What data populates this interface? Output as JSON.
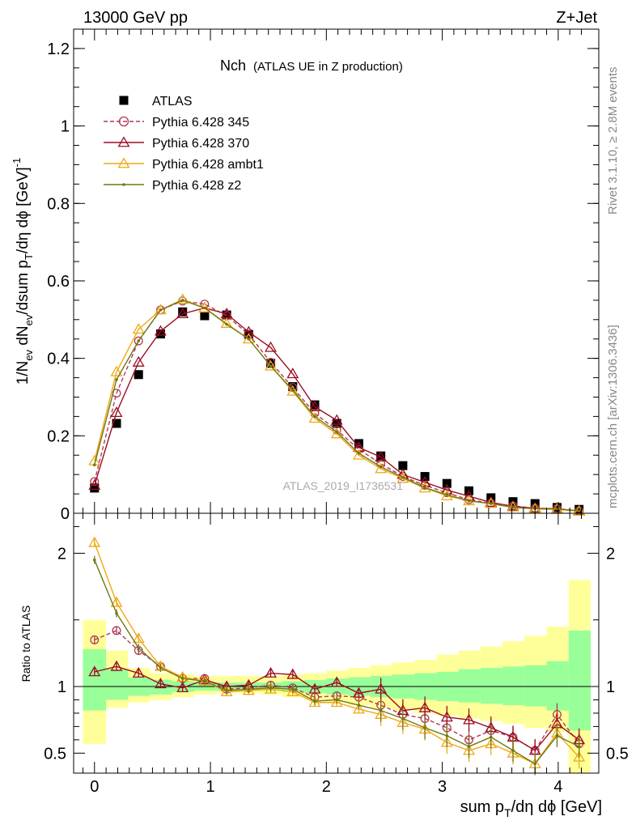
{
  "header": {
    "left": "13000 GeV pp",
    "right": "Z+Jet"
  },
  "side_labels": {
    "rivet": "Rivet 3.1.10, ≥ 2.8M events",
    "mcplots": "mcplots.cern.ch [arXiv:1306.3436]"
  },
  "chart_data": [
    {
      "type": "scatter",
      "title_main": "Nch",
      "title_sub": "(ATLAS UE in Z production)",
      "ylabel": "1/N_ev dN_ev/dsum p_T/dη dϕ [GeV]^-1",
      "analysis_label": "ATLAS_2019_I1736531",
      "ylim": [
        0,
        1.25
      ],
      "xlim": [
        -0.18,
        4.35
      ],
      "yticks": [
        "0",
        "0.2",
        "0.4",
        "0.6",
        "0.8",
        "1",
        "1.2"
      ],
      "legend_position": "top-left",
      "x": [
        0.0,
        0.19,
        0.38,
        0.57,
        0.76,
        0.95,
        1.14,
        1.33,
        1.52,
        1.71,
        1.9,
        2.09,
        2.28,
        2.47,
        2.66,
        2.85,
        3.04,
        3.23,
        3.42,
        3.61,
        3.8,
        3.99,
        4.18
      ],
      "series": [
        {
          "name": "ATLAS",
          "color": "#000000",
          "marker": "square",
          "values": [
            0.065,
            0.232,
            0.358,
            0.463,
            0.52,
            0.51,
            0.512,
            0.462,
            0.387,
            0.327,
            0.28,
            0.232,
            0.18,
            0.148,
            0.123,
            0.095,
            0.077,
            0.058,
            0.04,
            0.03,
            0.025,
            0.015,
            0.01
          ]
        },
        {
          "name": "Pythia 6.428 345",
          "color": "#b03a52",
          "marker": "circle-open",
          "dashed": true,
          "values": [
            0.082,
            0.31,
            0.445,
            0.525,
            0.548,
            0.54,
            0.51,
            0.462,
            0.39,
            0.325,
            0.258,
            0.215,
            0.165,
            0.128,
            0.095,
            0.072,
            0.053,
            0.035,
            0.026,
            0.019,
            0.013,
            0.012,
            0.006
          ]
        },
        {
          "name": "Pythia 6.428 370",
          "color": "#9b0d22",
          "marker": "triangle-open",
          "values": [
            0.072,
            0.26,
            0.39,
            0.47,
            0.515,
            0.53,
            0.515,
            0.468,
            0.428,
            0.36,
            0.275,
            0.24,
            0.17,
            0.145,
            0.1,
            0.08,
            0.06,
            0.044,
            0.028,
            0.018,
            0.013,
            0.011,
            0.006
          ]
        },
        {
          "name": "Pythia 6.428 ambt1",
          "color": "#f0a814",
          "marker": "triangle-open",
          "values": [
            0.135,
            0.365,
            0.475,
            0.525,
            0.552,
            0.53,
            0.49,
            0.45,
            0.38,
            0.315,
            0.245,
            0.205,
            0.15,
            0.115,
            0.09,
            0.065,
            0.045,
            0.032,
            0.025,
            0.016,
            0.011,
            0.01,
            0.005
          ]
        },
        {
          "name": "Pythia 6.428 z2",
          "color": "#6e7a14",
          "marker": "dot",
          "values": [
            0.125,
            0.345,
            0.445,
            0.525,
            0.55,
            0.53,
            0.488,
            0.45,
            0.38,
            0.318,
            0.25,
            0.21,
            0.155,
            0.12,
            0.093,
            0.066,
            0.048,
            0.032,
            0.025,
            0.015,
            0.012,
            0.011,
            0.006
          ]
        }
      ]
    },
    {
      "type": "scatter",
      "ylabel": "Ratio to ATLAS",
      "xlabel": "sum p_T/dη dϕ [GeV]",
      "ylim": [
        0.35,
        2.3
      ],
      "xlim": [
        -0.18,
        4.35
      ],
      "yticks": [
        "0.5",
        "1",
        "2"
      ],
      "xticks": [
        "0",
        "1",
        "2",
        "3",
        "4"
      ],
      "x": [
        0.0,
        0.19,
        0.38,
        0.57,
        0.76,
        0.95,
        1.14,
        1.33,
        1.52,
        1.71,
        1.9,
        2.09,
        2.28,
        2.47,
        2.66,
        2.85,
        3.04,
        3.23,
        3.42,
        3.61,
        3.8,
        3.99,
        4.18
      ],
      "bands": {
        "edges": [
          -0.1,
          0.1,
          0.29,
          0.48,
          0.67,
          0.86,
          1.05,
          1.24,
          1.43,
          1.62,
          1.81,
          2.0,
          2.19,
          2.38,
          2.57,
          2.76,
          2.95,
          3.14,
          3.33,
          3.52,
          3.71,
          3.9,
          4.09,
          4.28
        ],
        "yellow_lo": [
          0.57,
          0.84,
          0.88,
          0.9,
          0.92,
          0.94,
          0.95,
          0.95,
          0.94,
          0.92,
          0.9,
          0.88,
          0.86,
          0.84,
          0.82,
          0.8,
          0.78,
          0.76,
          0.74,
          0.72,
          0.69,
          0.66,
          0.35
        ],
        "yellow_hi": [
          1.5,
          1.27,
          1.14,
          1.1,
          1.09,
          1.08,
          1.08,
          1.08,
          1.08,
          1.09,
          1.1,
          1.12,
          1.14,
          1.16,
          1.18,
          1.2,
          1.24,
          1.27,
          1.3,
          1.34,
          1.38,
          1.45,
          1.8
        ],
        "green_lo": [
          0.82,
          0.9,
          0.93,
          0.94,
          0.96,
          0.97,
          0.97,
          0.97,
          0.97,
          0.96,
          0.95,
          0.94,
          0.93,
          0.92,
          0.91,
          0.9,
          0.89,
          0.88,
          0.87,
          0.86,
          0.85,
          0.82,
          0.67
        ],
        "green_hi": [
          1.28,
          1.13,
          1.07,
          1.05,
          1.04,
          1.03,
          1.03,
          1.03,
          1.03,
          1.04,
          1.05,
          1.06,
          1.07,
          1.08,
          1.09,
          1.1,
          1.11,
          1.13,
          1.14,
          1.15,
          1.16,
          1.19,
          1.42
        ]
      },
      "series": [
        {
          "name": "Pythia 6.428 345",
          "color": "#b03a52",
          "marker": "circle-open",
          "dashed": true,
          "values": [
            1.35,
            1.42,
            1.27,
            1.15,
            1.06,
            1.06,
            0.98,
            0.99,
            1.01,
            0.99,
            0.92,
            0.93,
            0.92,
            0.86,
            0.79,
            0.76,
            0.69,
            0.6,
            0.67,
            0.62,
            0.52,
            0.79,
            0.57
          ]
        },
        {
          "name": "Pythia 6.428 370",
          "color": "#9b0d22",
          "marker": "triangle-open",
          "values": [
            1.11,
            1.15,
            1.1,
            1.02,
            0.99,
            1.05,
            1.0,
            1.01,
            1.1,
            1.09,
            0.98,
            1.03,
            0.95,
            0.98,
            0.82,
            0.84,
            0.77,
            0.75,
            0.69,
            0.62,
            0.52,
            0.72,
            0.6
          ]
        },
        {
          "name": "Pythia 6.428 ambt1",
          "color": "#f0a814",
          "marker": "triangle-open",
          "values": [
            2.08,
            1.63,
            1.36,
            1.15,
            1.07,
            1.04,
            0.96,
            0.97,
            0.98,
            0.96,
            0.88,
            0.88,
            0.83,
            0.79,
            0.73,
            0.68,
            0.58,
            0.52,
            0.57,
            0.5,
            0.42,
            0.65,
            0.47
          ]
        },
        {
          "name": "Pythia 6.428 z2",
          "color": "#6e7a14",
          "marker": "dot",
          "values": [
            1.95,
            1.55,
            1.29,
            1.14,
            1.06,
            1.04,
            0.97,
            0.98,
            0.99,
            0.98,
            0.89,
            0.9,
            0.86,
            0.82,
            0.76,
            0.69,
            0.63,
            0.55,
            0.62,
            0.52,
            0.42,
            0.63,
            0.55
          ]
        }
      ]
    }
  ]
}
